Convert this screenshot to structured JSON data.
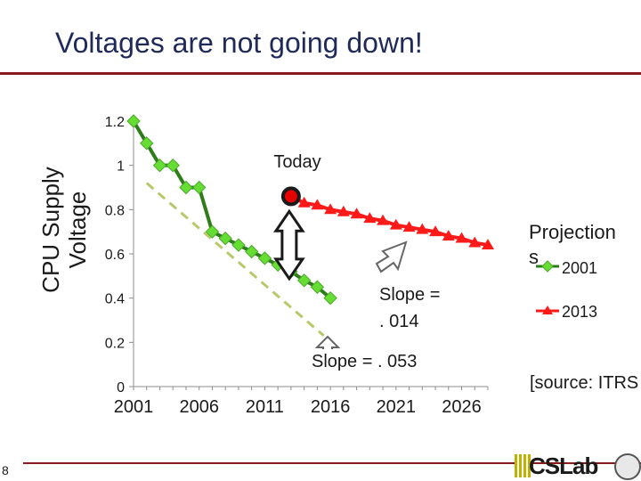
{
  "slide": {
    "title": "Voltages are not going down!",
    "number": "8",
    "source": "[source: ITRS"
  },
  "logo": {
    "text": "CSLab"
  },
  "colors": {
    "title": "#1f2a5a",
    "rule": "#8b1a1a",
    "series_2001": "#2e7d1a",
    "series_2001_marker": "#66dd33",
    "series_2013": "#ff1a1a",
    "trend": "#b8c86a",
    "today_marker": "#e60000"
  },
  "chart_data": {
    "type": "line",
    "ylabel": "CPU Supply Voltage",
    "xlabel": "",
    "ylim": [
      0,
      1.2
    ],
    "xlim": [
      2001,
      2028
    ],
    "y_ticks": [
      "0",
      "0.2",
      "0.4",
      "0.6",
      "0.8",
      "1",
      "1.2"
    ],
    "y_tick_values": [
      0,
      0.2,
      0.4,
      0.6,
      0.8,
      1.0,
      1.2
    ],
    "x_ticks": [
      "2001",
      "2006",
      "2011",
      "2016",
      "2021",
      "2026"
    ],
    "x_tick_values": [
      2001,
      2006,
      2011,
      2016,
      2021,
      2026
    ],
    "grid": false,
    "legend_title": "Projection s",
    "legend_position": "right",
    "series": [
      {
        "name": "2001",
        "x": [
          2001,
          2002,
          2003,
          2004,
          2005,
          2006,
          2007,
          2008,
          2009,
          2010,
          2011,
          2012,
          2013,
          2014,
          2015,
          2016
        ],
        "values": [
          1.2,
          1.1,
          1.0,
          1.0,
          0.9,
          0.9,
          0.7,
          0.67,
          0.64,
          0.61,
          0.58,
          0.55,
          0.52,
          0.48,
          0.45,
          0.4
        ]
      },
      {
        "name": "2013",
        "x": [
          2013,
          2014,
          2015,
          2016,
          2017,
          2018,
          2019,
          2020,
          2021,
          2022,
          2023,
          2024,
          2025,
          2026,
          2027,
          2028
        ],
        "values": [
          0.86,
          0.83,
          0.82,
          0.8,
          0.79,
          0.78,
          0.76,
          0.75,
          0.73,
          0.72,
          0.71,
          0.7,
          0.68,
          0.67,
          0.65,
          0.64
        ]
      }
    ],
    "trend_line": {
      "x": [
        2002,
        2015.5
      ],
      "values": [
        0.92,
        0.23
      ]
    },
    "annotations": {
      "today": "Today",
      "slope_2013": "Slope = . 014",
      "slope_2001": "Slope = . 053"
    },
    "today_point": {
      "x": 2013,
      "value": 0.86
    },
    "gap_arrow": {
      "x": 2013,
      "from": 0.78,
      "to": 0.52
    }
  }
}
